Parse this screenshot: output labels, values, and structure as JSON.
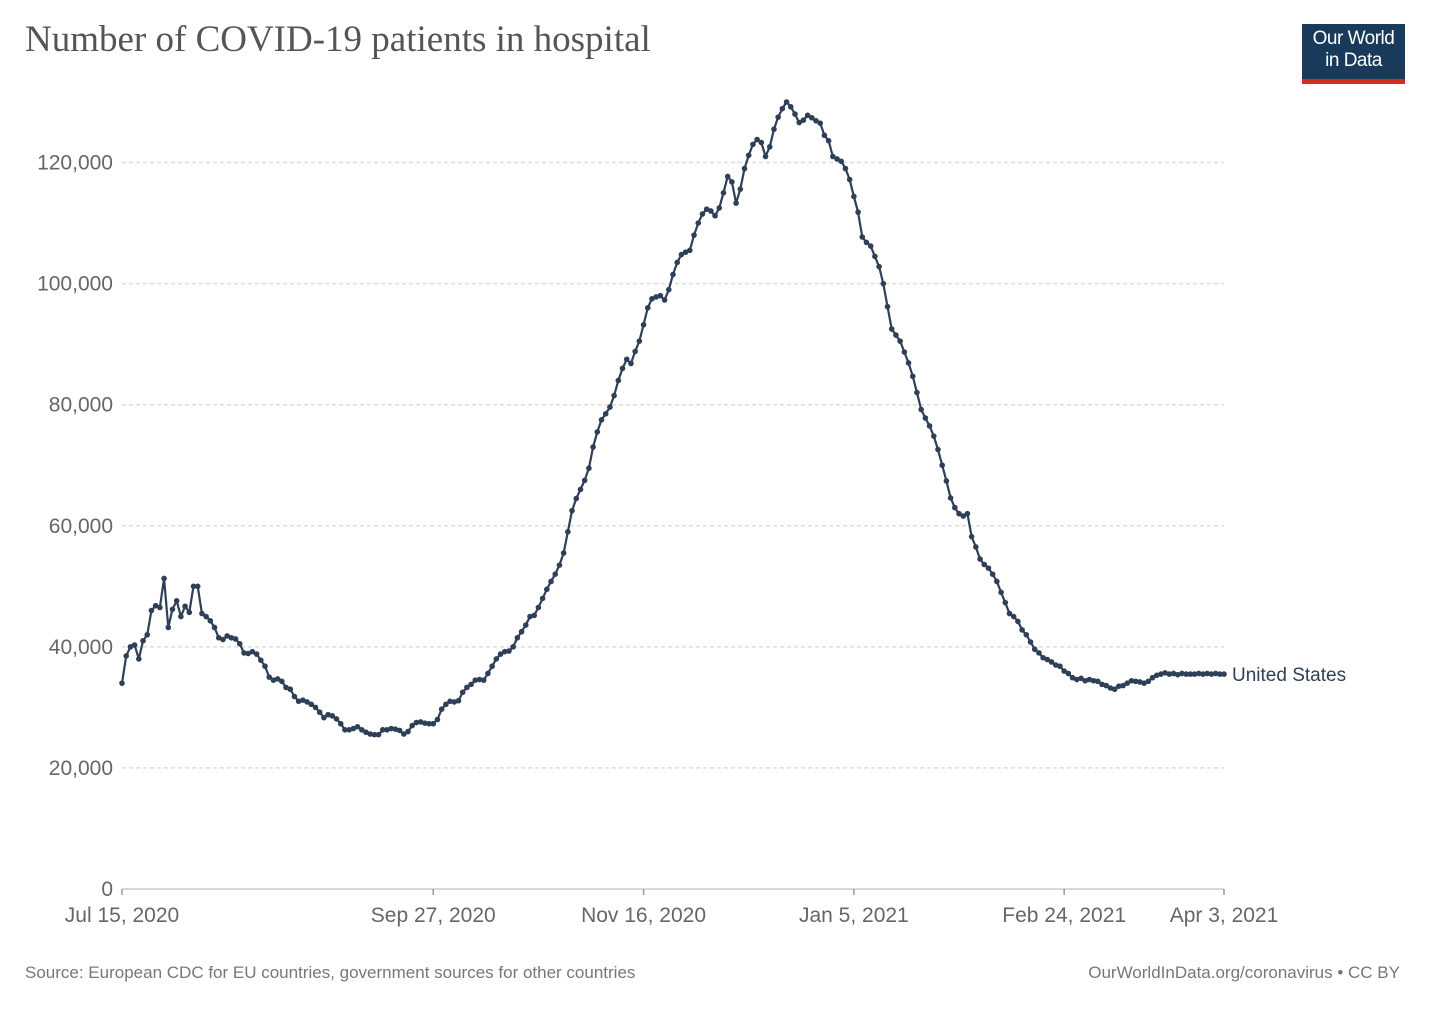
{
  "title": "Number of COVID-19 patients in hospital",
  "logo": {
    "line1": "Our World",
    "line2": "in Data",
    "bg_color": "#1a3a5c",
    "accent_color": "#d42b21"
  },
  "footer": {
    "source": "Source: European CDC for EU countries, government sources for other countries",
    "credit": "OurWorldInData.org/coronavirus • CC BY"
  },
  "chart_data": {
    "type": "line",
    "title": "Number of COVID-19 patients in hospital",
    "xlabel": "",
    "ylabel": "",
    "x_range": [
      "2020-07-15",
      "2021-04-03"
    ],
    "ylim": [
      0,
      130000
    ],
    "y_ticks": [
      0,
      20000,
      40000,
      60000,
      80000,
      100000,
      120000
    ],
    "y_tick_labels": [
      "0",
      "20,000",
      "40,000",
      "60,000",
      "80,000",
      "100,000",
      "120,000"
    ],
    "x_ticks": [
      "2020-07-15",
      "2020-09-27",
      "2020-11-16",
      "2021-01-05",
      "2021-02-24",
      "2021-04-03"
    ],
    "x_tick_labels": [
      "Jul 15, 2020",
      "Sep 27, 2020",
      "Nov 16, 2020",
      "Jan 5, 2021",
      "Feb 24, 2021",
      "Apr 3, 2021"
    ],
    "grid": "horizontal dashed",
    "line_color": "#2e3f57",
    "series": [
      {
        "name": "United States",
        "points": [
          [
            "2020-07-15",
            34000
          ],
          [
            "2020-07-16",
            38500
          ],
          [
            "2020-07-17",
            40000
          ],
          [
            "2020-07-18",
            40300
          ],
          [
            "2020-07-19",
            38000
          ],
          [
            "2020-07-20",
            41000
          ],
          [
            "2020-07-21",
            42000
          ],
          [
            "2020-07-22",
            46000
          ],
          [
            "2020-07-23",
            46800
          ],
          [
            "2020-07-24",
            46500
          ],
          [
            "2020-07-25",
            51300
          ],
          [
            "2020-07-26",
            43200
          ],
          [
            "2020-07-27",
            46200
          ],
          [
            "2020-07-28",
            47600
          ],
          [
            "2020-07-29",
            45000
          ],
          [
            "2020-07-30",
            46700
          ],
          [
            "2020-07-31",
            45700
          ],
          [
            "2020-08-01",
            50000
          ],
          [
            "2020-08-02",
            50000
          ],
          [
            "2020-08-03",
            45500
          ],
          [
            "2020-08-04",
            45000
          ],
          [
            "2020-08-05",
            44300
          ],
          [
            "2020-08-06",
            43200
          ],
          [
            "2020-08-07",
            41500
          ],
          [
            "2020-08-08",
            41200
          ],
          [
            "2020-08-09",
            41800
          ],
          [
            "2020-08-10",
            41500
          ],
          [
            "2020-08-11",
            41300
          ],
          [
            "2020-08-12",
            40500
          ],
          [
            "2020-08-13",
            39000
          ],
          [
            "2020-08-14",
            38900
          ],
          [
            "2020-08-15",
            39200
          ],
          [
            "2020-08-16",
            38800
          ],
          [
            "2020-08-17",
            37800
          ],
          [
            "2020-08-18",
            36800
          ],
          [
            "2020-08-19",
            35000
          ],
          [
            "2020-08-20",
            34500
          ],
          [
            "2020-08-21",
            34700
          ],
          [
            "2020-08-22",
            34300
          ],
          [
            "2020-08-23",
            33300
          ],
          [
            "2020-08-24",
            33000
          ],
          [
            "2020-08-25",
            31800
          ],
          [
            "2020-08-26",
            31000
          ],
          [
            "2020-08-27",
            31200
          ],
          [
            "2020-08-28",
            30900
          ],
          [
            "2020-08-29",
            30500
          ],
          [
            "2020-08-30",
            30000
          ],
          [
            "2020-08-31",
            29200
          ],
          [
            "2020-09-01",
            28300
          ],
          [
            "2020-09-02",
            28800
          ],
          [
            "2020-09-03",
            28600
          ],
          [
            "2020-09-04",
            28100
          ],
          [
            "2020-09-05",
            27300
          ],
          [
            "2020-09-06",
            26300
          ],
          [
            "2020-09-07",
            26300
          ],
          [
            "2020-09-08",
            26500
          ],
          [
            "2020-09-09",
            26800
          ],
          [
            "2020-09-10",
            26300
          ],
          [
            "2020-09-11",
            25900
          ],
          [
            "2020-09-12",
            25600
          ],
          [
            "2020-09-13",
            25500
          ],
          [
            "2020-09-14",
            25500
          ],
          [
            "2020-09-15",
            26300
          ],
          [
            "2020-09-16",
            26300
          ],
          [
            "2020-09-17",
            26500
          ],
          [
            "2020-09-18",
            26400
          ],
          [
            "2020-09-19",
            26200
          ],
          [
            "2020-09-20",
            25600
          ],
          [
            "2020-09-21",
            26000
          ],
          [
            "2020-09-22",
            27000
          ],
          [
            "2020-09-23",
            27500
          ],
          [
            "2020-09-24",
            27600
          ],
          [
            "2020-09-25",
            27400
          ],
          [
            "2020-09-26",
            27300
          ],
          [
            "2020-09-27",
            27300
          ],
          [
            "2020-09-28",
            28000
          ],
          [
            "2020-09-29",
            29700
          ],
          [
            "2020-09-30",
            30500
          ],
          [
            "2020-10-01",
            31000
          ],
          [
            "2020-10-02",
            30900
          ],
          [
            "2020-10-03",
            31100
          ],
          [
            "2020-10-04",
            32500
          ],
          [
            "2020-10-05",
            33300
          ],
          [
            "2020-10-06",
            33800
          ],
          [
            "2020-10-07",
            34500
          ],
          [
            "2020-10-08",
            34600
          ],
          [
            "2020-10-09",
            34500
          ],
          [
            "2020-10-10",
            35600
          ],
          [
            "2020-10-11",
            36800
          ],
          [
            "2020-10-12",
            38000
          ],
          [
            "2020-10-13",
            38800
          ],
          [
            "2020-10-14",
            39200
          ],
          [
            "2020-10-15",
            39300
          ],
          [
            "2020-10-16",
            40000
          ],
          [
            "2020-10-17",
            41500
          ],
          [
            "2020-10-18",
            42500
          ],
          [
            "2020-10-19",
            43600
          ],
          [
            "2020-10-20",
            45000
          ],
          [
            "2020-10-21",
            45200
          ],
          [
            "2020-10-22",
            46500
          ],
          [
            "2020-10-23",
            48000
          ],
          [
            "2020-10-24",
            49500
          ],
          [
            "2020-10-25",
            50800
          ],
          [
            "2020-10-26",
            52000
          ],
          [
            "2020-10-27",
            53500
          ],
          [
            "2020-10-28",
            55500
          ],
          [
            "2020-10-29",
            59000
          ],
          [
            "2020-10-30",
            62500
          ],
          [
            "2020-10-31",
            64500
          ],
          [
            "2020-11-01",
            66000
          ],
          [
            "2020-11-02",
            67500
          ],
          [
            "2020-11-03",
            69500
          ],
          [
            "2020-11-04",
            73000
          ],
          [
            "2020-11-05",
            75500
          ],
          [
            "2020-11-06",
            77500
          ],
          [
            "2020-11-07",
            78500
          ],
          [
            "2020-11-08",
            79600
          ],
          [
            "2020-11-09",
            81500
          ],
          [
            "2020-11-10",
            84000
          ],
          [
            "2020-11-11",
            86000
          ],
          [
            "2020-11-12",
            87500
          ],
          [
            "2020-11-13",
            86800
          ],
          [
            "2020-11-14",
            88800
          ],
          [
            "2020-11-15",
            90500
          ],
          [
            "2020-11-16",
            93200
          ],
          [
            "2020-11-17",
            96000
          ],
          [
            "2020-11-18",
            97500
          ],
          [
            "2020-11-19",
            97800
          ],
          [
            "2020-11-20",
            98000
          ],
          [
            "2020-11-21",
            97300
          ],
          [
            "2020-11-22",
            99000
          ],
          [
            "2020-11-23",
            101500
          ],
          [
            "2020-11-24",
            103500
          ],
          [
            "2020-11-25",
            104800
          ],
          [
            "2020-11-26",
            105200
          ],
          [
            "2020-11-27",
            105500
          ],
          [
            "2020-11-28",
            108000
          ],
          [
            "2020-11-29",
            110000
          ],
          [
            "2020-11-30",
            111500
          ],
          [
            "2020-12-01",
            112300
          ],
          [
            "2020-12-02",
            112000
          ],
          [
            "2020-12-03",
            111200
          ],
          [
            "2020-12-04",
            112500
          ],
          [
            "2020-12-05",
            115000
          ],
          [
            "2020-12-06",
            117700
          ],
          [
            "2020-12-07",
            116800
          ],
          [
            "2020-12-08",
            113300
          ],
          [
            "2020-12-09",
            115600
          ],
          [
            "2020-12-10",
            119000
          ],
          [
            "2020-12-11",
            121200
          ],
          [
            "2020-12-12",
            123000
          ],
          [
            "2020-12-13",
            123800
          ],
          [
            "2020-12-14",
            123300
          ],
          [
            "2020-12-15",
            121000
          ],
          [
            "2020-12-16",
            122600
          ],
          [
            "2020-12-17",
            125500
          ],
          [
            "2020-12-18",
            127500
          ],
          [
            "2020-12-19",
            128900
          ],
          [
            "2020-12-20",
            130000
          ],
          [
            "2020-12-21",
            129200
          ],
          [
            "2020-12-22",
            128000
          ],
          [
            "2020-12-23",
            126600
          ],
          [
            "2020-12-24",
            127000
          ],
          [
            "2020-12-25",
            127800
          ],
          [
            "2020-12-26",
            127400
          ],
          [
            "2020-12-27",
            126900
          ],
          [
            "2020-12-28",
            126500
          ],
          [
            "2020-12-29",
            124500
          ],
          [
            "2020-12-30",
            123600
          ],
          [
            "2020-12-31",
            121000
          ],
          [
            "2021-01-01",
            120600
          ],
          [
            "2021-01-02",
            120200
          ],
          [
            "2021-01-03",
            119000
          ],
          [
            "2021-01-04",
            117200
          ],
          [
            "2021-01-05",
            114400
          ],
          [
            "2021-01-06",
            111800
          ],
          [
            "2021-01-07",
            107700
          ],
          [
            "2021-01-08",
            106800
          ],
          [
            "2021-01-09",
            106200
          ],
          [
            "2021-01-10",
            104500
          ],
          [
            "2021-01-11",
            102800
          ],
          [
            "2021-01-12",
            100000
          ],
          [
            "2021-01-13",
            96200
          ],
          [
            "2021-01-14",
            92500
          ],
          [
            "2021-01-15",
            91500
          ],
          [
            "2021-01-16",
            90500
          ],
          [
            "2021-01-17",
            88700
          ],
          [
            "2021-01-18",
            86900
          ],
          [
            "2021-01-19",
            84700
          ],
          [
            "2021-01-20",
            82000
          ],
          [
            "2021-01-21",
            79200
          ],
          [
            "2021-01-22",
            77800
          ],
          [
            "2021-01-23",
            76500
          ],
          [
            "2021-01-24",
            74800
          ],
          [
            "2021-01-25",
            72600
          ],
          [
            "2021-01-26",
            70000
          ],
          [
            "2021-01-27",
            67400
          ],
          [
            "2021-01-28",
            64600
          ],
          [
            "2021-01-29",
            63000
          ],
          [
            "2021-01-30",
            62000
          ],
          [
            "2021-01-31",
            61600
          ],
          [
            "2021-02-01",
            62000
          ],
          [
            "2021-02-02",
            58200
          ],
          [
            "2021-02-03",
            56500
          ],
          [
            "2021-02-04",
            54500
          ],
          [
            "2021-02-05",
            53600
          ],
          [
            "2021-02-06",
            53000
          ],
          [
            "2021-02-07",
            52000
          ],
          [
            "2021-02-08",
            50800
          ],
          [
            "2021-02-09",
            49000
          ],
          [
            "2021-02-10",
            47300
          ],
          [
            "2021-02-11",
            45500
          ],
          [
            "2021-02-12",
            45000
          ],
          [
            "2021-02-13",
            44200
          ],
          [
            "2021-02-14",
            42800
          ],
          [
            "2021-02-15",
            42000
          ],
          [
            "2021-02-16",
            40800
          ],
          [
            "2021-02-17",
            39600
          ],
          [
            "2021-02-18",
            39000
          ],
          [
            "2021-02-19",
            38200
          ],
          [
            "2021-02-20",
            37900
          ],
          [
            "2021-02-21",
            37500
          ],
          [
            "2021-02-22",
            37000
          ],
          [
            "2021-02-23",
            36800
          ],
          [
            "2021-02-24",
            36000
          ],
          [
            "2021-02-25",
            35600
          ],
          [
            "2021-02-26",
            34900
          ],
          [
            "2021-02-27",
            34600
          ],
          [
            "2021-02-28",
            34800
          ],
          [
            "2021-03-01",
            34400
          ],
          [
            "2021-03-02",
            34600
          ],
          [
            "2021-03-03",
            34400
          ],
          [
            "2021-03-04",
            34300
          ],
          [
            "2021-03-05",
            33800
          ],
          [
            "2021-03-06",
            33600
          ],
          [
            "2021-03-07",
            33200
          ],
          [
            "2021-03-08",
            33000
          ],
          [
            "2021-03-09",
            33500
          ],
          [
            "2021-03-10",
            33600
          ],
          [
            "2021-03-11",
            34000
          ],
          [
            "2021-03-12",
            34400
          ],
          [
            "2021-03-13",
            34300
          ],
          [
            "2021-03-14",
            34200
          ],
          [
            "2021-03-15",
            34000
          ],
          [
            "2021-03-16",
            34300
          ],
          [
            "2021-03-17",
            34900
          ],
          [
            "2021-03-18",
            35300
          ],
          [
            "2021-03-19",
            35500
          ],
          [
            "2021-03-20",
            35700
          ],
          [
            "2021-03-21",
            35500
          ],
          [
            "2021-03-22",
            35600
          ],
          [
            "2021-03-23",
            35400
          ],
          [
            "2021-03-24",
            35600
          ],
          [
            "2021-03-25",
            35500
          ],
          [
            "2021-03-26",
            35500
          ],
          [
            "2021-03-27",
            35500
          ],
          [
            "2021-03-28",
            35600
          ],
          [
            "2021-03-29",
            35500
          ],
          [
            "2021-03-30",
            35600
          ],
          [
            "2021-03-31",
            35500
          ],
          [
            "2021-04-01",
            35600
          ],
          [
            "2021-04-02",
            35500
          ],
          [
            "2021-04-03",
            35500
          ]
        ]
      }
    ]
  }
}
